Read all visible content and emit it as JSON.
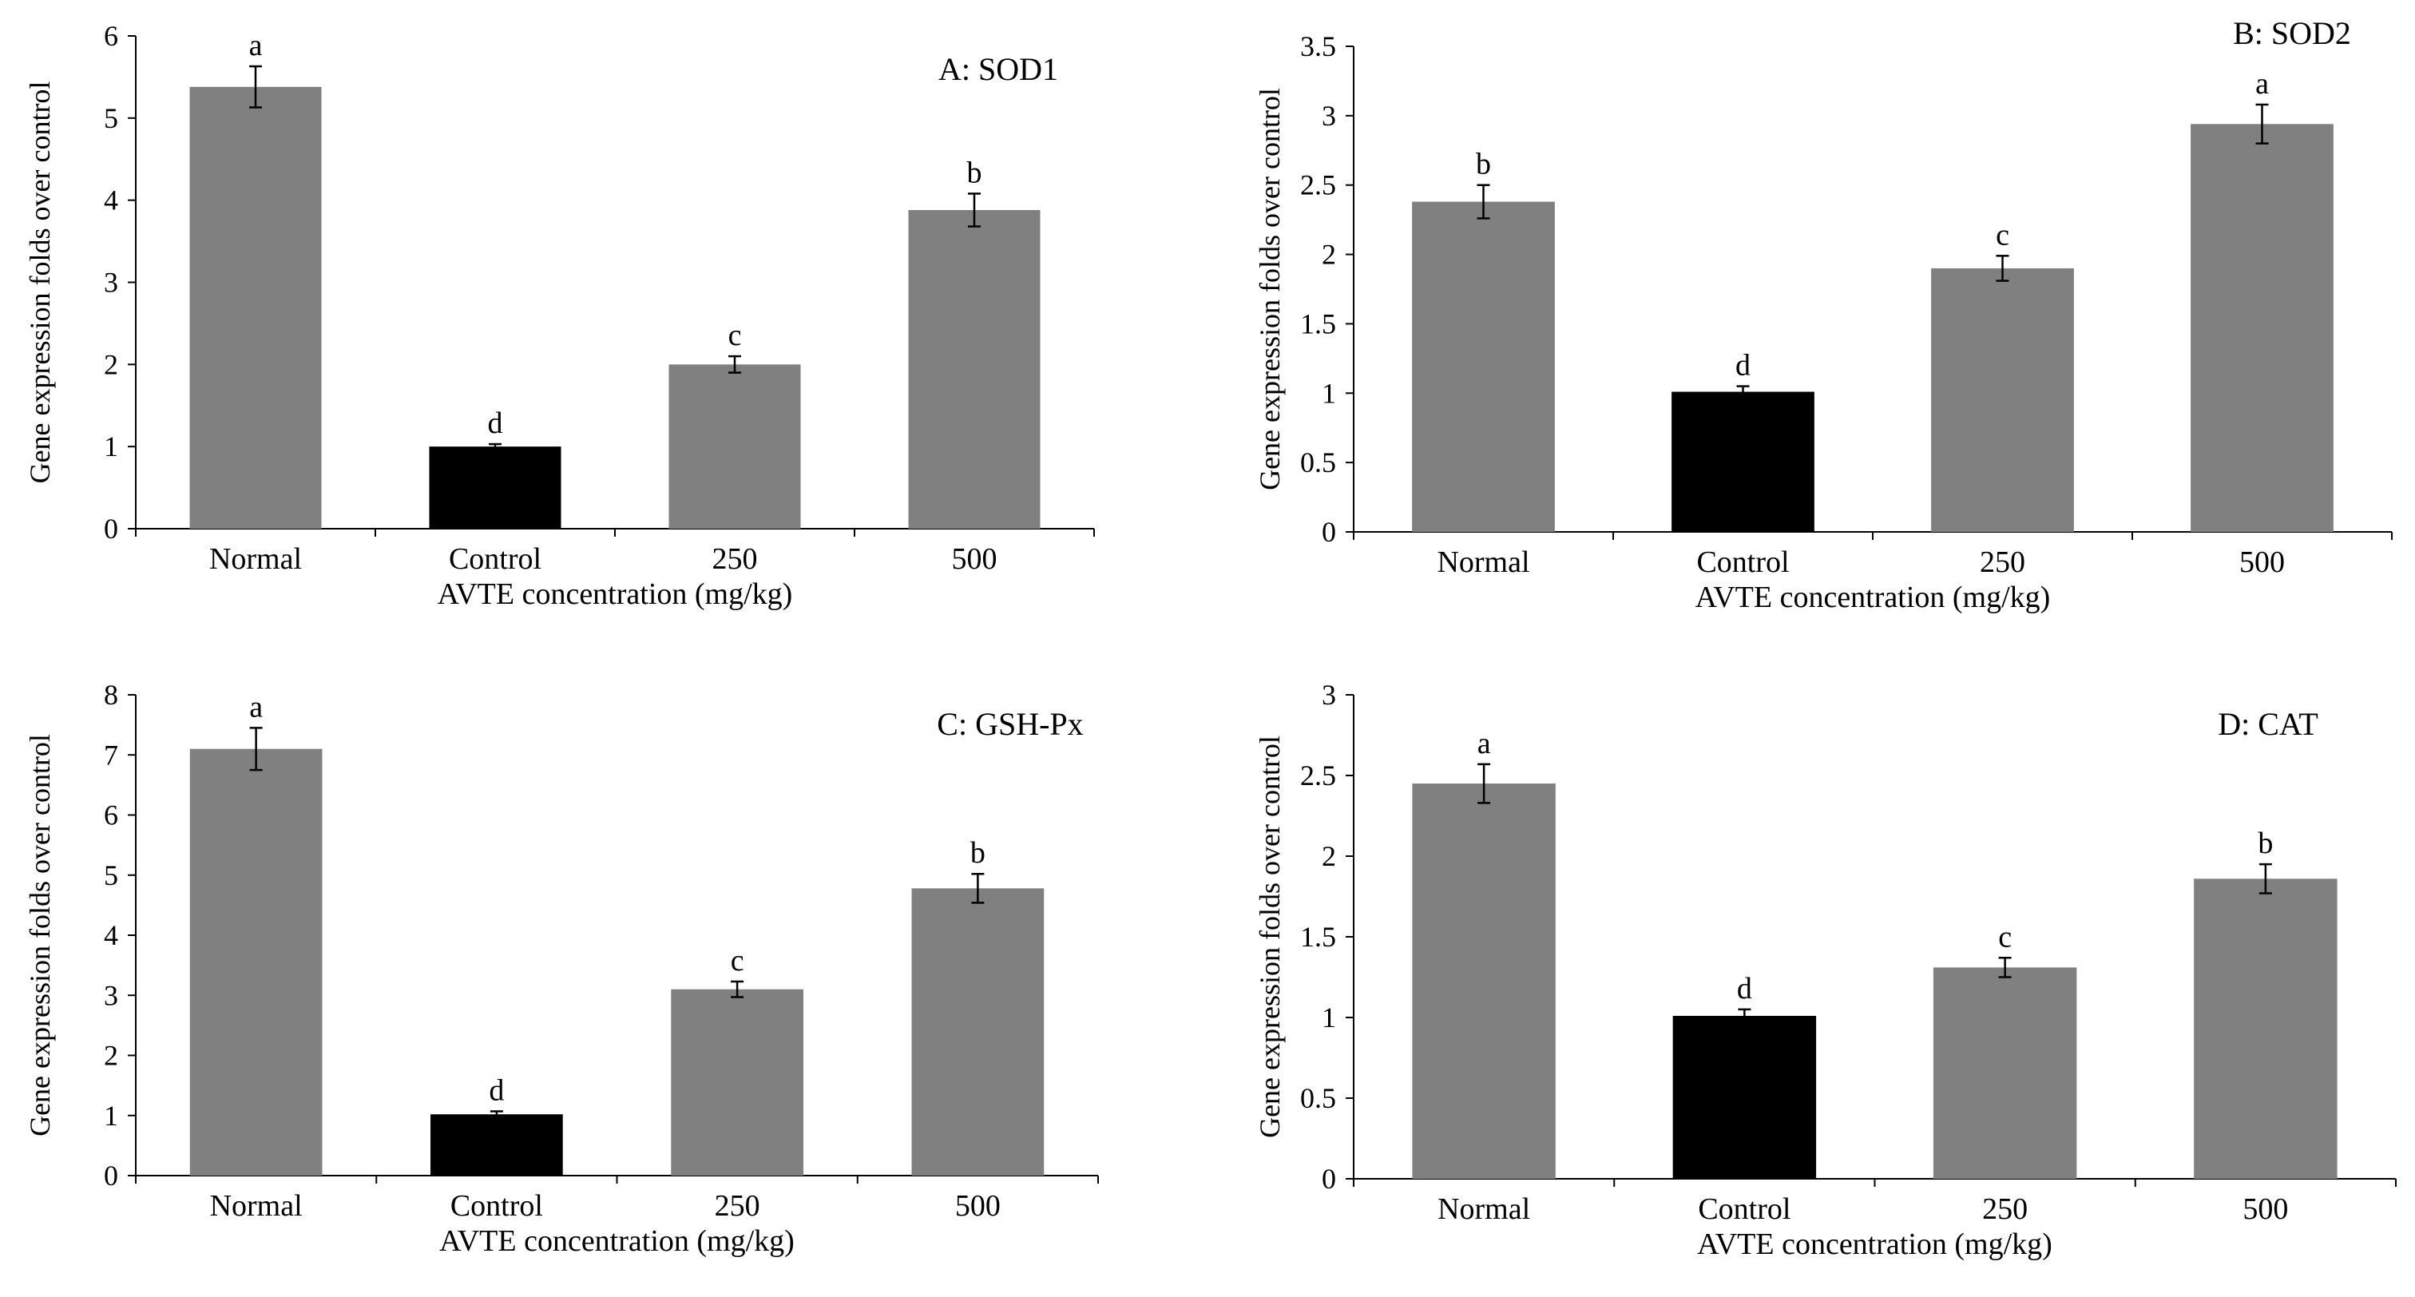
{
  "chart_data": [
    {
      "type": "bar",
      "title": "A: SOD1",
      "xlabel": "AVTE concentration (mg/kg)",
      "ylabel": "Gene expression folds over control",
      "categories": [
        "Normal",
        "Control",
        "250",
        "500"
      ],
      "values": [
        5.38,
        1.0,
        2.0,
        3.88
      ],
      "errors": [
        0.25,
        0.03,
        0.1,
        0.2
      ],
      "significance": [
        "a",
        "d",
        "c",
        "b"
      ],
      "ylim": [
        0,
        6
      ],
      "yticks": [
        "0",
        "1",
        "2",
        "3",
        "4",
        "5",
        "6"
      ],
      "colors": [
        "#808080",
        "#000000",
        "#808080",
        "#808080"
      ]
    },
    {
      "type": "bar",
      "title": "B: SOD2",
      "xlabel": "AVTE concentration (mg/kg)",
      "ylabel": "Gene expression folds over control",
      "categories": [
        "Normal",
        "Control",
        "250",
        "500"
      ],
      "values": [
        2.38,
        1.01,
        1.9,
        2.94
      ],
      "errors": [
        0.12,
        0.04,
        0.09,
        0.14
      ],
      "significance": [
        "b",
        "d",
        "c",
        "a"
      ],
      "ylim": [
        0,
        3.5
      ],
      "yticks": [
        "0",
        "0.5",
        "1",
        "1.5",
        "2",
        "2.5",
        "3",
        "3.5"
      ],
      "colors": [
        "#808080",
        "#000000",
        "#808080",
        "#808080"
      ]
    },
    {
      "type": "bar",
      "title": "C: GSH-Px",
      "xlabel": "AVTE concentration (mg/kg)",
      "ylabel": "Gene expression folds over control",
      "categories": [
        "Normal",
        "Control",
        "250",
        "500"
      ],
      "values": [
        7.1,
        1.02,
        3.1,
        4.78
      ],
      "errors": [
        0.35,
        0.05,
        0.13,
        0.24
      ],
      "significance": [
        "a",
        "d",
        "c",
        "b"
      ],
      "ylim": [
        0,
        8
      ],
      "yticks": [
        "0",
        "1",
        "2",
        "3",
        "4",
        "5",
        "6",
        "7",
        "8"
      ],
      "colors": [
        "#808080",
        "#000000",
        "#808080",
        "#808080"
      ]
    },
    {
      "type": "bar",
      "title": "D: CAT",
      "xlabel": "AVTE concentration (mg/kg)",
      "ylabel": "Gene expression folds over control",
      "categories": [
        "Normal",
        "Control",
        "250",
        "500"
      ],
      "values": [
        2.45,
        1.01,
        1.31,
        1.86
      ],
      "errors": [
        0.12,
        0.04,
        0.06,
        0.09
      ],
      "significance": [
        "a",
        "d",
        "c",
        "b"
      ],
      "ylim": [
        0,
        3
      ],
      "yticks": [
        "0",
        "0.5",
        "1",
        "1.5",
        "2",
        "2.5",
        "3"
      ],
      "colors": [
        "#808080",
        "#000000",
        "#808080",
        "#808080"
      ]
    }
  ]
}
